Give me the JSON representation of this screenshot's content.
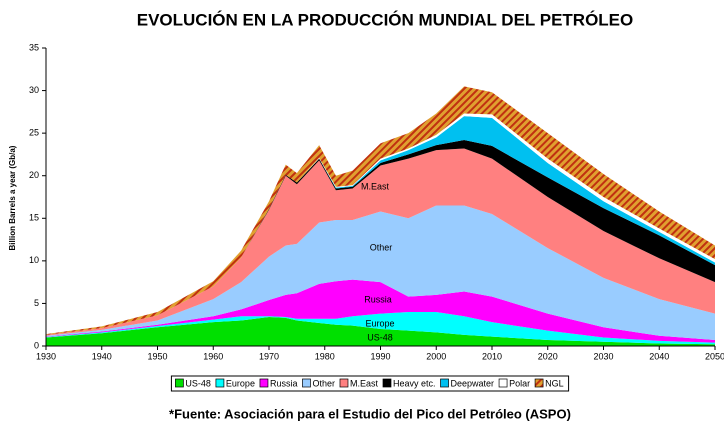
{
  "chart_data": {
    "type": "stacked_area",
    "title": "EVOLUCIÓN EN LA PRODUCCIÓN MUNDIAL DEL PETRÓLEO",
    "ylabel": "Billion Barrels a year (Gb/a)",
    "source": "*Fuente: Asociación para el Estudio del Pico del Petróleo (ASPO)",
    "x": [
      1930,
      1940,
      1950,
      1960,
      1965,
      1970,
      1973,
      1975,
      1979,
      1982,
      1985,
      1990,
      1995,
      2000,
      2005,
      2010,
      2020,
      2030,
      2040,
      2050
    ],
    "series": [
      {
        "name": "US-48",
        "color": "#00e000",
        "values": [
          1.0,
          1.5,
          2.2,
          2.8,
          3.0,
          3.4,
          3.3,
          3.0,
          2.7,
          2.5,
          2.4,
          2.0,
          1.8,
          1.6,
          1.3,
          1.1,
          0.7,
          0.5,
          0.3,
          0.2
        ]
      },
      {
        "name": "Europe",
        "color": "#00ffff",
        "values": [
          0.05,
          0.1,
          0.15,
          0.3,
          0.5,
          0.1,
          0.1,
          0.2,
          0.5,
          0.7,
          1.1,
          1.8,
          2.2,
          2.4,
          2.2,
          1.7,
          1.1,
          0.5,
          0.3,
          0.2
        ]
      },
      {
        "name": "Russia",
        "color": "#ff00ff",
        "values": [
          0.05,
          0.1,
          0.15,
          0.4,
          0.8,
          1.9,
          2.6,
          3.0,
          4.1,
          4.4,
          4.3,
          3.7,
          1.8,
          2.0,
          2.9,
          3.0,
          2.0,
          1.2,
          0.6,
          0.3
        ]
      },
      {
        "name": "Other",
        "color": "#99ccff",
        "values": [
          0.1,
          0.2,
          0.5,
          2.0,
          3.2,
          5.1,
          5.8,
          5.8,
          7.2,
          7.2,
          7.0,
          8.3,
          9.2,
          10.5,
          10.1,
          9.7,
          7.7,
          5.8,
          4.3,
          3.1
        ]
      },
      {
        "name": "M.East",
        "color": "#ff8080",
        "values": [
          0.1,
          0.2,
          0.6,
          1.5,
          2.9,
          5.5,
          8.2,
          7.0,
          7.3,
          3.5,
          3.7,
          5.4,
          7.0,
          6.5,
          6.7,
          6.5,
          6.0,
          5.5,
          4.8,
          3.7
        ]
      },
      {
        "name": "Heavy etc.",
        "color": "#000000",
        "values": [
          0,
          0,
          0,
          0,
          0,
          0.1,
          0.1,
          0.2,
          0.2,
          0.2,
          0.2,
          0.3,
          0.5,
          0.6,
          1.0,
          1.5,
          2.3,
          2.7,
          2.7,
          2.0
        ]
      },
      {
        "name": "Deepwater",
        "color": "#00c0f0",
        "values": [
          0,
          0,
          0,
          0,
          0,
          0,
          0,
          0,
          0,
          0.1,
          0.1,
          0.3,
          0.5,
          0.9,
          2.8,
          3.3,
          1.7,
          0.8,
          0.4,
          0.3
        ]
      },
      {
        "name": "Polar",
        "color": "#ffffff",
        "values": [
          0,
          0,
          0,
          0,
          0,
          0,
          0,
          0,
          0.1,
          0.1,
          0.1,
          0.2,
          0.2,
          0.3,
          0.3,
          0.4,
          0.5,
          0.5,
          0.4,
          0.4
        ]
      },
      {
        "name": "NGL",
        "color": "#e0a030",
        "values": [
          0.1,
          0.2,
          0.4,
          0.6,
          0.8,
          0.9,
          1.2,
          1.1,
          1.5,
          1.3,
          1.7,
          1.8,
          1.8,
          2.5,
          3.2,
          2.6,
          3.0,
          2.7,
          2.0,
          1.6
        ]
      }
    ],
    "annotations": [
      "M.East",
      "Other",
      "Russia",
      "Europe",
      "US-48"
    ],
    "xlim": [
      1930,
      2050
    ],
    "xticks": [
      1930,
      1940,
      1950,
      1960,
      1970,
      1980,
      1990,
      2000,
      2010,
      2020,
      2030,
      2040,
      2050
    ],
    "ylim": [
      0,
      35
    ],
    "yticks": [
      0,
      5,
      10,
      15,
      20,
      25,
      30,
      35
    ],
    "grid": false,
    "legend": "bottom"
  }
}
